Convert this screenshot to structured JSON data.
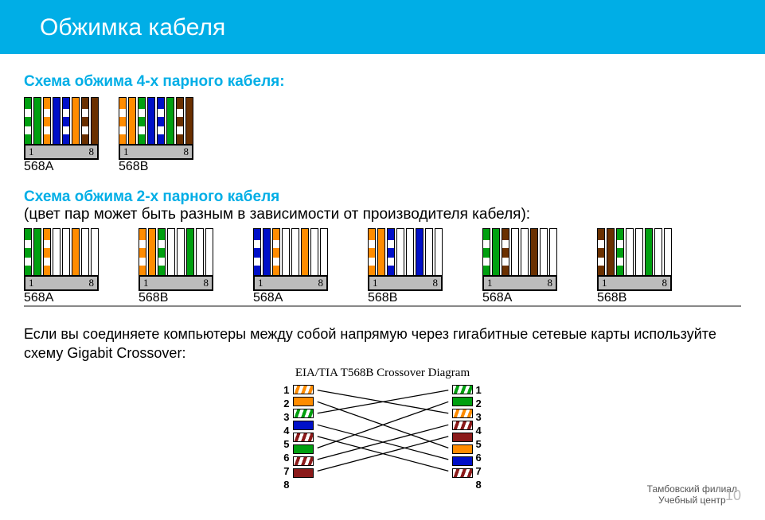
{
  "header": {
    "title": "Обжимка кабеля"
  },
  "colors": {
    "green": "#00a010",
    "orange": "#ff8c00",
    "blue": "#0010c8",
    "brown": "#6a3000",
    "darkred": "#8b1a1a",
    "bg_cyan": "#00aee6"
  },
  "section4": {
    "title": "Схема обжима 4-х парного кабеля:",
    "connectors": [
      {
        "label": "568A",
        "pins": [
          "1",
          "8"
        ],
        "wires": [
          {
            "c": "green",
            "t": "striped"
          },
          {
            "c": "green",
            "t": "solid"
          },
          {
            "c": "orange",
            "t": "striped"
          },
          {
            "c": "blue",
            "t": "solid"
          },
          {
            "c": "blue",
            "t": "striped"
          },
          {
            "c": "orange",
            "t": "solid"
          },
          {
            "c": "brown",
            "t": "striped"
          },
          {
            "c": "brown",
            "t": "solid"
          }
        ]
      },
      {
        "label": "568B",
        "pins": [
          "1",
          "8"
        ],
        "wires": [
          {
            "c": "orange",
            "t": "striped"
          },
          {
            "c": "orange",
            "t": "solid"
          },
          {
            "c": "green",
            "t": "striped"
          },
          {
            "c": "blue",
            "t": "solid"
          },
          {
            "c": "blue",
            "t": "striped"
          },
          {
            "c": "green",
            "t": "solid"
          },
          {
            "c": "brown",
            "t": "striped"
          },
          {
            "c": "brown",
            "t": "solid"
          }
        ]
      }
    ]
  },
  "section2": {
    "title": "Схема обжима 2-х парного кабеля",
    "note": "(цвет пар может быть разным в зависимости от производителя кабеля):",
    "connectors": [
      {
        "label": "568A",
        "pins": [
          "1",
          "8"
        ],
        "wires": [
          {
            "c": "green",
            "t": "striped"
          },
          {
            "c": "green",
            "t": "solid"
          },
          {
            "c": "orange",
            "t": "striped"
          },
          {
            "t": "empty"
          },
          {
            "t": "empty"
          },
          {
            "c": "orange",
            "t": "solid"
          },
          {
            "t": "empty"
          },
          {
            "t": "empty"
          }
        ]
      },
      {
        "label": "568B",
        "pins": [
          "1",
          "8"
        ],
        "wires": [
          {
            "c": "orange",
            "t": "striped"
          },
          {
            "c": "orange",
            "t": "solid"
          },
          {
            "c": "green",
            "t": "striped"
          },
          {
            "t": "empty"
          },
          {
            "t": "empty"
          },
          {
            "c": "green",
            "t": "solid"
          },
          {
            "t": "empty"
          },
          {
            "t": "empty"
          }
        ]
      },
      {
        "label": "568A",
        "pins": [
          "1",
          "8"
        ],
        "wires": [
          {
            "c": "blue",
            "t": "striped"
          },
          {
            "c": "blue",
            "t": "solid"
          },
          {
            "c": "orange",
            "t": "striped"
          },
          {
            "t": "empty"
          },
          {
            "t": "empty"
          },
          {
            "c": "orange",
            "t": "solid"
          },
          {
            "t": "empty"
          },
          {
            "t": "empty"
          }
        ]
      },
      {
        "label": "568B",
        "pins": [
          "1",
          "8"
        ],
        "wires": [
          {
            "c": "orange",
            "t": "striped"
          },
          {
            "c": "orange",
            "t": "solid"
          },
          {
            "c": "blue",
            "t": "striped"
          },
          {
            "t": "empty"
          },
          {
            "t": "empty"
          },
          {
            "c": "blue",
            "t": "solid"
          },
          {
            "t": "empty"
          },
          {
            "t": "empty"
          }
        ]
      },
      {
        "label": "568A",
        "pins": [
          "1",
          "8"
        ],
        "wires": [
          {
            "c": "green",
            "t": "striped"
          },
          {
            "c": "green",
            "t": "solid"
          },
          {
            "c": "brown",
            "t": "striped"
          },
          {
            "t": "empty"
          },
          {
            "t": "empty"
          },
          {
            "c": "brown",
            "t": "solid"
          },
          {
            "t": "empty"
          },
          {
            "t": "empty"
          }
        ]
      },
      {
        "label": "568B",
        "pins": [
          "1",
          "8"
        ],
        "wires": [
          {
            "c": "brown",
            "t": "striped"
          },
          {
            "c": "brown",
            "t": "solid"
          },
          {
            "c": "green",
            "t": "striped"
          },
          {
            "t": "empty"
          },
          {
            "t": "empty"
          },
          {
            "c": "green",
            "t": "solid"
          },
          {
            "t": "empty"
          },
          {
            "t": "empty"
          }
        ]
      }
    ]
  },
  "gigabit": {
    "text": "Если вы соединяете компьютеры между собой напрямую через гигабитные сетевые карты используйте схему Gigabit Crossover:",
    "diagram_title": "EIA/TIA T568B Crossover Diagram",
    "left": [
      {
        "n": "1",
        "c": "orange",
        "t": "hatched"
      },
      {
        "n": "2",
        "c": "orange",
        "t": "solid"
      },
      {
        "n": "3",
        "c": "green",
        "t": "hatched"
      },
      {
        "n": "4",
        "c": "blue",
        "t": "solid"
      },
      {
        "n": "5",
        "c": "darkred",
        "t": "hatched"
      },
      {
        "n": "6",
        "c": "green",
        "t": "solid"
      },
      {
        "n": "7",
        "c": "darkred",
        "t": "hatched"
      },
      {
        "n": "8",
        "c": "darkred",
        "t": "solid"
      }
    ],
    "right": [
      {
        "n": "1",
        "c": "green",
        "t": "hatched"
      },
      {
        "n": "2",
        "c": "green",
        "t": "solid"
      },
      {
        "n": "3",
        "c": "orange",
        "t": "hatched"
      },
      {
        "n": "4",
        "c": "darkred",
        "t": "hatched"
      },
      {
        "n": "5",
        "c": "darkred",
        "t": "solid"
      },
      {
        "n": "6",
        "c": "orange",
        "t": "solid"
      },
      {
        "n": "7",
        "c": "blue",
        "t": "solid"
      },
      {
        "n": "8",
        "c": "darkred",
        "t": "hatched"
      }
    ],
    "mapping": [
      [
        1,
        3
      ],
      [
        2,
        6
      ],
      [
        3,
        1
      ],
      [
        4,
        7
      ],
      [
        5,
        8
      ],
      [
        6,
        2
      ],
      [
        7,
        4
      ],
      [
        8,
        5
      ]
    ]
  },
  "footer": {
    "line1": "Тамбовский филиал",
    "line2": "Учебный центр",
    "page": "10"
  }
}
